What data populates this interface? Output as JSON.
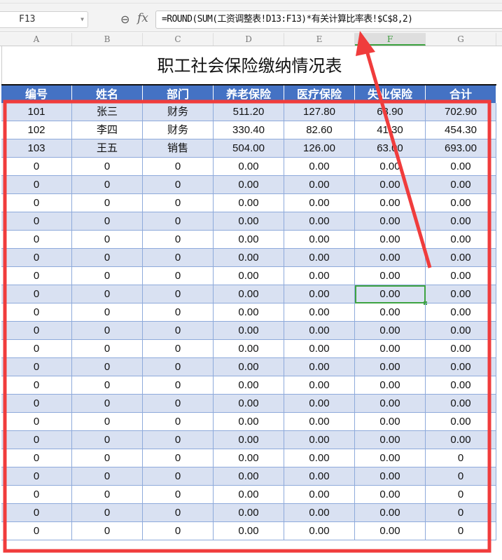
{
  "formula_bar": {
    "name_box": "F13",
    "fx_label": "fx",
    "formula": "=ROUND(SUM(工资调整表!D13:F13)*有关计算比率表!$C$8,2)"
  },
  "columns": [
    "A",
    "B",
    "C",
    "D",
    "E",
    "F",
    "G"
  ],
  "selected_column": "F",
  "sheet": {
    "title": "职工社会保险缴纳情况表",
    "headers": [
      "编号",
      "姓名",
      "部门",
      "养老保险",
      "医疗保险",
      "失业保险",
      "合计"
    ],
    "rows": [
      [
        "101",
        "张三",
        "财务",
        "511.20",
        "127.80",
        "63.90",
        "702.90"
      ],
      [
        "102",
        "李四",
        "财务",
        "330.40",
        "82.60",
        "41.30",
        "454.30"
      ],
      [
        "103",
        "王五",
        "销售",
        "504.00",
        "126.00",
        "63.00",
        "693.00"
      ],
      [
        "0",
        "0",
        "0",
        "0.00",
        "0.00",
        "0.00",
        "0.00"
      ],
      [
        "0",
        "0",
        "0",
        "0.00",
        "0.00",
        "0.00",
        "0.00"
      ],
      [
        "0",
        "0",
        "0",
        "0.00",
        "0.00",
        "0.00",
        "0.00"
      ],
      [
        "0",
        "0",
        "0",
        "0.00",
        "0.00",
        "0.00",
        "0.00"
      ],
      [
        "0",
        "0",
        "0",
        "0.00",
        "0.00",
        "0.00",
        "0.00"
      ],
      [
        "0",
        "0",
        "0",
        "0.00",
        "0.00",
        "0.00",
        "0.00"
      ],
      [
        "0",
        "0",
        "0",
        "0.00",
        "0.00",
        "0.00",
        "0.00"
      ],
      [
        "0",
        "0",
        "0",
        "0.00",
        "0.00",
        "0.00",
        "0.00"
      ],
      [
        "0",
        "0",
        "0",
        "0.00",
        "0.00",
        "0.00",
        "0.00"
      ],
      [
        "0",
        "0",
        "0",
        "0.00",
        "0.00",
        "0.00",
        "0.00"
      ],
      [
        "0",
        "0",
        "0",
        "0.00",
        "0.00",
        "0.00",
        "0.00"
      ],
      [
        "0",
        "0",
        "0",
        "0.00",
        "0.00",
        "0.00",
        "0.00"
      ],
      [
        "0",
        "0",
        "0",
        "0.00",
        "0.00",
        "0.00",
        "0.00"
      ],
      [
        "0",
        "0",
        "0",
        "0.00",
        "0.00",
        "0.00",
        "0.00"
      ],
      [
        "0",
        "0",
        "0",
        "0.00",
        "0.00",
        "0.00",
        "0.00"
      ],
      [
        "0",
        "0",
        "0",
        "0.00",
        "0.00",
        "0.00",
        "0.00"
      ],
      [
        "0",
        "0",
        "0",
        "0.00",
        "0.00",
        "0.00",
        "0"
      ],
      [
        "0",
        "0",
        "0",
        "0.00",
        "0.00",
        "0.00",
        "0"
      ],
      [
        "0",
        "0",
        "0",
        "0.00",
        "0.00",
        "0.00",
        "0"
      ],
      [
        "0",
        "0",
        "0",
        "0.00",
        "0.00",
        "0.00",
        "0"
      ],
      [
        "0",
        "0",
        "0",
        "0.00",
        "0.00",
        "0.00",
        "0"
      ]
    ],
    "active_cell": {
      "row_index": 10,
      "col_index": 5
    }
  },
  "colors": {
    "header_bg": "#4472c4",
    "band": "#d9e1f2",
    "selection": "#3ea342",
    "annotation": "#f03c3c"
  },
  "icons": {
    "zoom": "magnifier-icon",
    "dropdown": "chevron-down-icon"
  }
}
